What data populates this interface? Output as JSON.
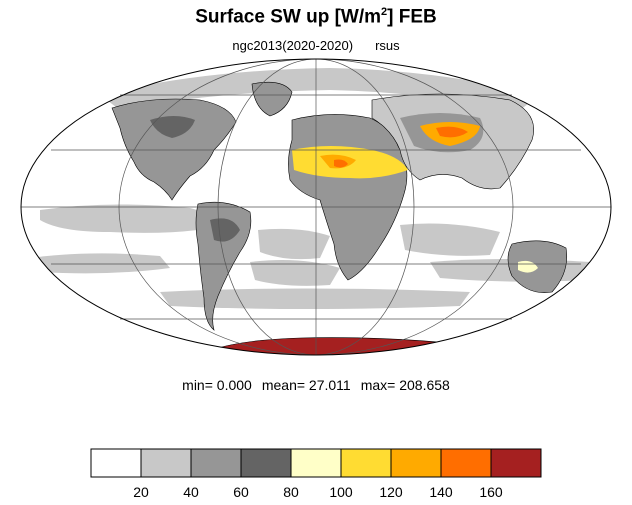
{
  "title": {
    "main": "Surface SW up [W/m",
    "exp": "2",
    "tail": "]  FEB"
  },
  "subtitle": {
    "run": "ngc2013(2020-2020)",
    "variable": "rsus"
  },
  "stats": {
    "min": "min=   0.000",
    "mean": "mean=  27.011",
    "max": "max= 208.658"
  },
  "colorbar": {
    "colors": [
      "#ffffff",
      "#c8c8c8",
      "#969696",
      "#646464",
      "#ffffc8",
      "#ffdc32",
      "#ffaa00",
      "#ff6e00",
      "#a52020"
    ],
    "labels": [
      "20",
      "40",
      "60",
      "80",
      "100",
      "120",
      "140",
      "160"
    ]
  }
}
